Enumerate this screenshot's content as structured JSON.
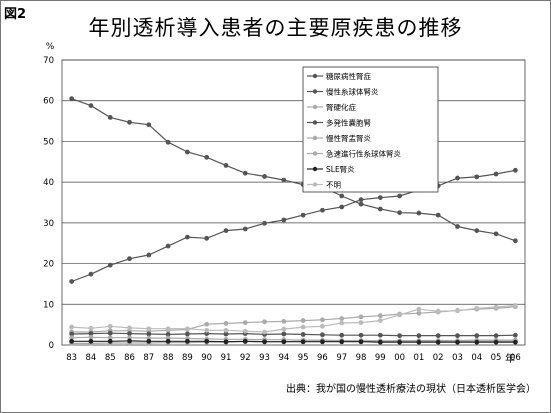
{
  "figure_label": "図2",
  "title": "年別透析導入患者の主要原疾患の推移",
  "source": "出典：我が国の慢性透析療法の現状（日本透析医学会）",
  "chart_data": {
    "type": "line",
    "title": "年別透析導入患者の主要原疾患の推移",
    "ylabel": "%",
    "xlabel": "年",
    "ylim": [
      0,
      70
    ],
    "y_ticks": [
      0,
      10,
      20,
      30,
      40,
      50,
      60,
      70
    ],
    "grid": true,
    "legend_position": "top-right",
    "categories": [
      "83",
      "84",
      "85",
      "86",
      "87",
      "88",
      "89",
      "90",
      "91",
      "92",
      "93",
      "94",
      "95",
      "96",
      "97",
      "98",
      "99",
      "00",
      "01",
      "02",
      "03",
      "04",
      "05",
      "06"
    ],
    "series": [
      {
        "name": "糖尿病性腎症",
        "color": "#555555",
        "marker": "circle",
        "dash": "",
        "values": [
          15.6,
          17.4,
          19.6,
          21.2,
          22.1,
          24.3,
          26.5,
          26.2,
          28.1,
          28.5,
          29.9,
          30.7,
          31.9,
          33.1,
          33.9,
          35.7,
          36.2,
          36.6,
          38.1,
          39.1,
          41.0,
          41.3,
          42.0,
          42.9
        ]
      },
      {
        "name": "慢性糸球体腎炎",
        "color": "#555555",
        "marker": "circle",
        "dash": "",
        "values": [
          60.5,
          58.8,
          55.9,
          54.7,
          54.1,
          49.8,
          47.4,
          46.1,
          44.1,
          42.2,
          41.4,
          40.5,
          39.4,
          38.9,
          36.6,
          34.6,
          33.4,
          32.5,
          32.4,
          31.9,
          29.1,
          28.1,
          27.3,
          25.6
        ]
      },
      {
        "name": "腎硬化症",
        "color": "#aaaaaa",
        "marker": "circle",
        "dash": "",
        "values": [
          3.2,
          3.2,
          3.5,
          3.5,
          3.4,
          3.6,
          3.8,
          5.1,
          5.3,
          5.5,
          5.7,
          5.8,
          6.0,
          6.2,
          6.5,
          6.9,
          7.2,
          7.6,
          7.8,
          8.1,
          8.5,
          8.8,
          9.0,
          9.4
        ]
      },
      {
        "name": "多発性嚢胞腎",
        "color": "#555555",
        "marker": "circle",
        "dash": "",
        "values": [
          2.7,
          2.8,
          2.9,
          2.8,
          2.7,
          2.6,
          2.7,
          2.8,
          2.7,
          2.8,
          2.6,
          2.7,
          2.6,
          2.5,
          2.4,
          2.4,
          2.4,
          2.3,
          2.3,
          2.3,
          2.3,
          2.3,
          2.3,
          2.4
        ]
      },
      {
        "name": "慢性腎盂腎炎",
        "color": "#aaaaaa",
        "marker": "circle",
        "dash": "",
        "values": [
          1.8,
          1.9,
          1.8,
          1.8,
          1.7,
          1.7,
          1.6,
          1.5,
          1.4,
          1.4,
          1.3,
          1.3,
          1.2,
          1.2,
          1.1,
          1.1,
          1.0,
          1.0,
          1.0,
          0.9,
          0.9,
          0.9,
          0.9,
          0.9
        ]
      },
      {
        "name": "急速進行性糸球体腎炎",
        "color": "#aaaaaa",
        "marker": "circle",
        "dash": "",
        "values": [
          0.4,
          0.4,
          0.5,
          0.5,
          0.5,
          0.6,
          0.6,
          0.7,
          0.7,
          0.8,
          0.8,
          0.8,
          0.9,
          0.9,
          1.0,
          1.0,
          1.0,
          1.0,
          1.1,
          1.1,
          1.1,
          1.2,
          1.2,
          1.2
        ]
      },
      {
        "name": "SLE腎炎",
        "color": "#222222",
        "marker": "circle",
        "dash": "",
        "values": [
          0.9,
          0.9,
          0.9,
          1.0,
          0.9,
          0.9,
          0.9,
          0.9,
          0.8,
          0.9,
          0.8,
          0.8,
          0.8,
          0.8,
          0.8,
          0.8,
          0.7,
          0.7,
          0.7,
          0.7,
          0.7,
          0.7,
          0.7,
          0.7
        ]
      },
      {
        "name": "不明",
        "color": "#bbbbbb",
        "marker": "circle",
        "dash": "",
        "values": [
          4.4,
          4.1,
          4.6,
          4.2,
          4.0,
          4.0,
          4.0,
          3.6,
          3.6,
          3.4,
          3.2,
          3.9,
          4.4,
          4.6,
          5.4,
          5.5,
          6.0,
          7.4,
          8.8,
          8.3,
          8.4,
          9.0,
          9.3,
          9.7
        ]
      }
    ]
  }
}
